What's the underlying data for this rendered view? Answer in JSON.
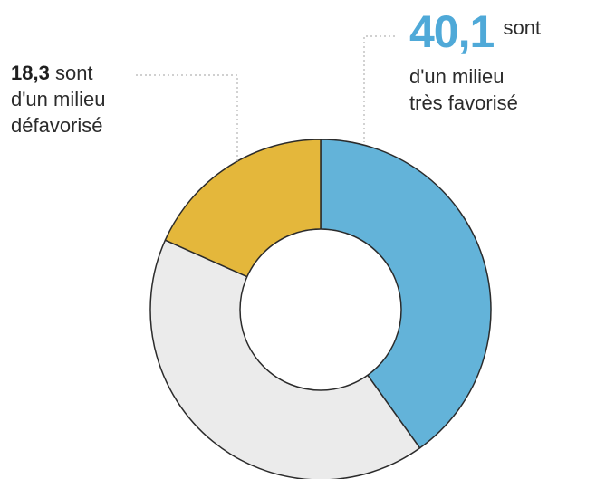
{
  "chart_data": {
    "type": "pie",
    "donut": true,
    "start_angle_deg": 0,
    "direction": "clockwise",
    "slices": [
      {
        "key": "tres_favorise",
        "value": 40.1,
        "color": "#63b3d9",
        "label": "très favorisé"
      },
      {
        "key": "autres",
        "value": 41.6,
        "color": "#ebebeb"
      },
      {
        "key": "defavorise",
        "value": 18.3,
        "color": "#e4b73b",
        "label": "défavorisé"
      }
    ],
    "stroke_color": "#2b2b2b",
    "leader_color": "#b3b3b3"
  },
  "labels": {
    "left": {
      "value": "18,3",
      "word": "sont",
      "line2": "d'un milieu",
      "line3": "défavorisé"
    },
    "right": {
      "value": "40,1",
      "word": "sont",
      "line2": "d'un milieu",
      "line3": "très favorisé"
    }
  }
}
